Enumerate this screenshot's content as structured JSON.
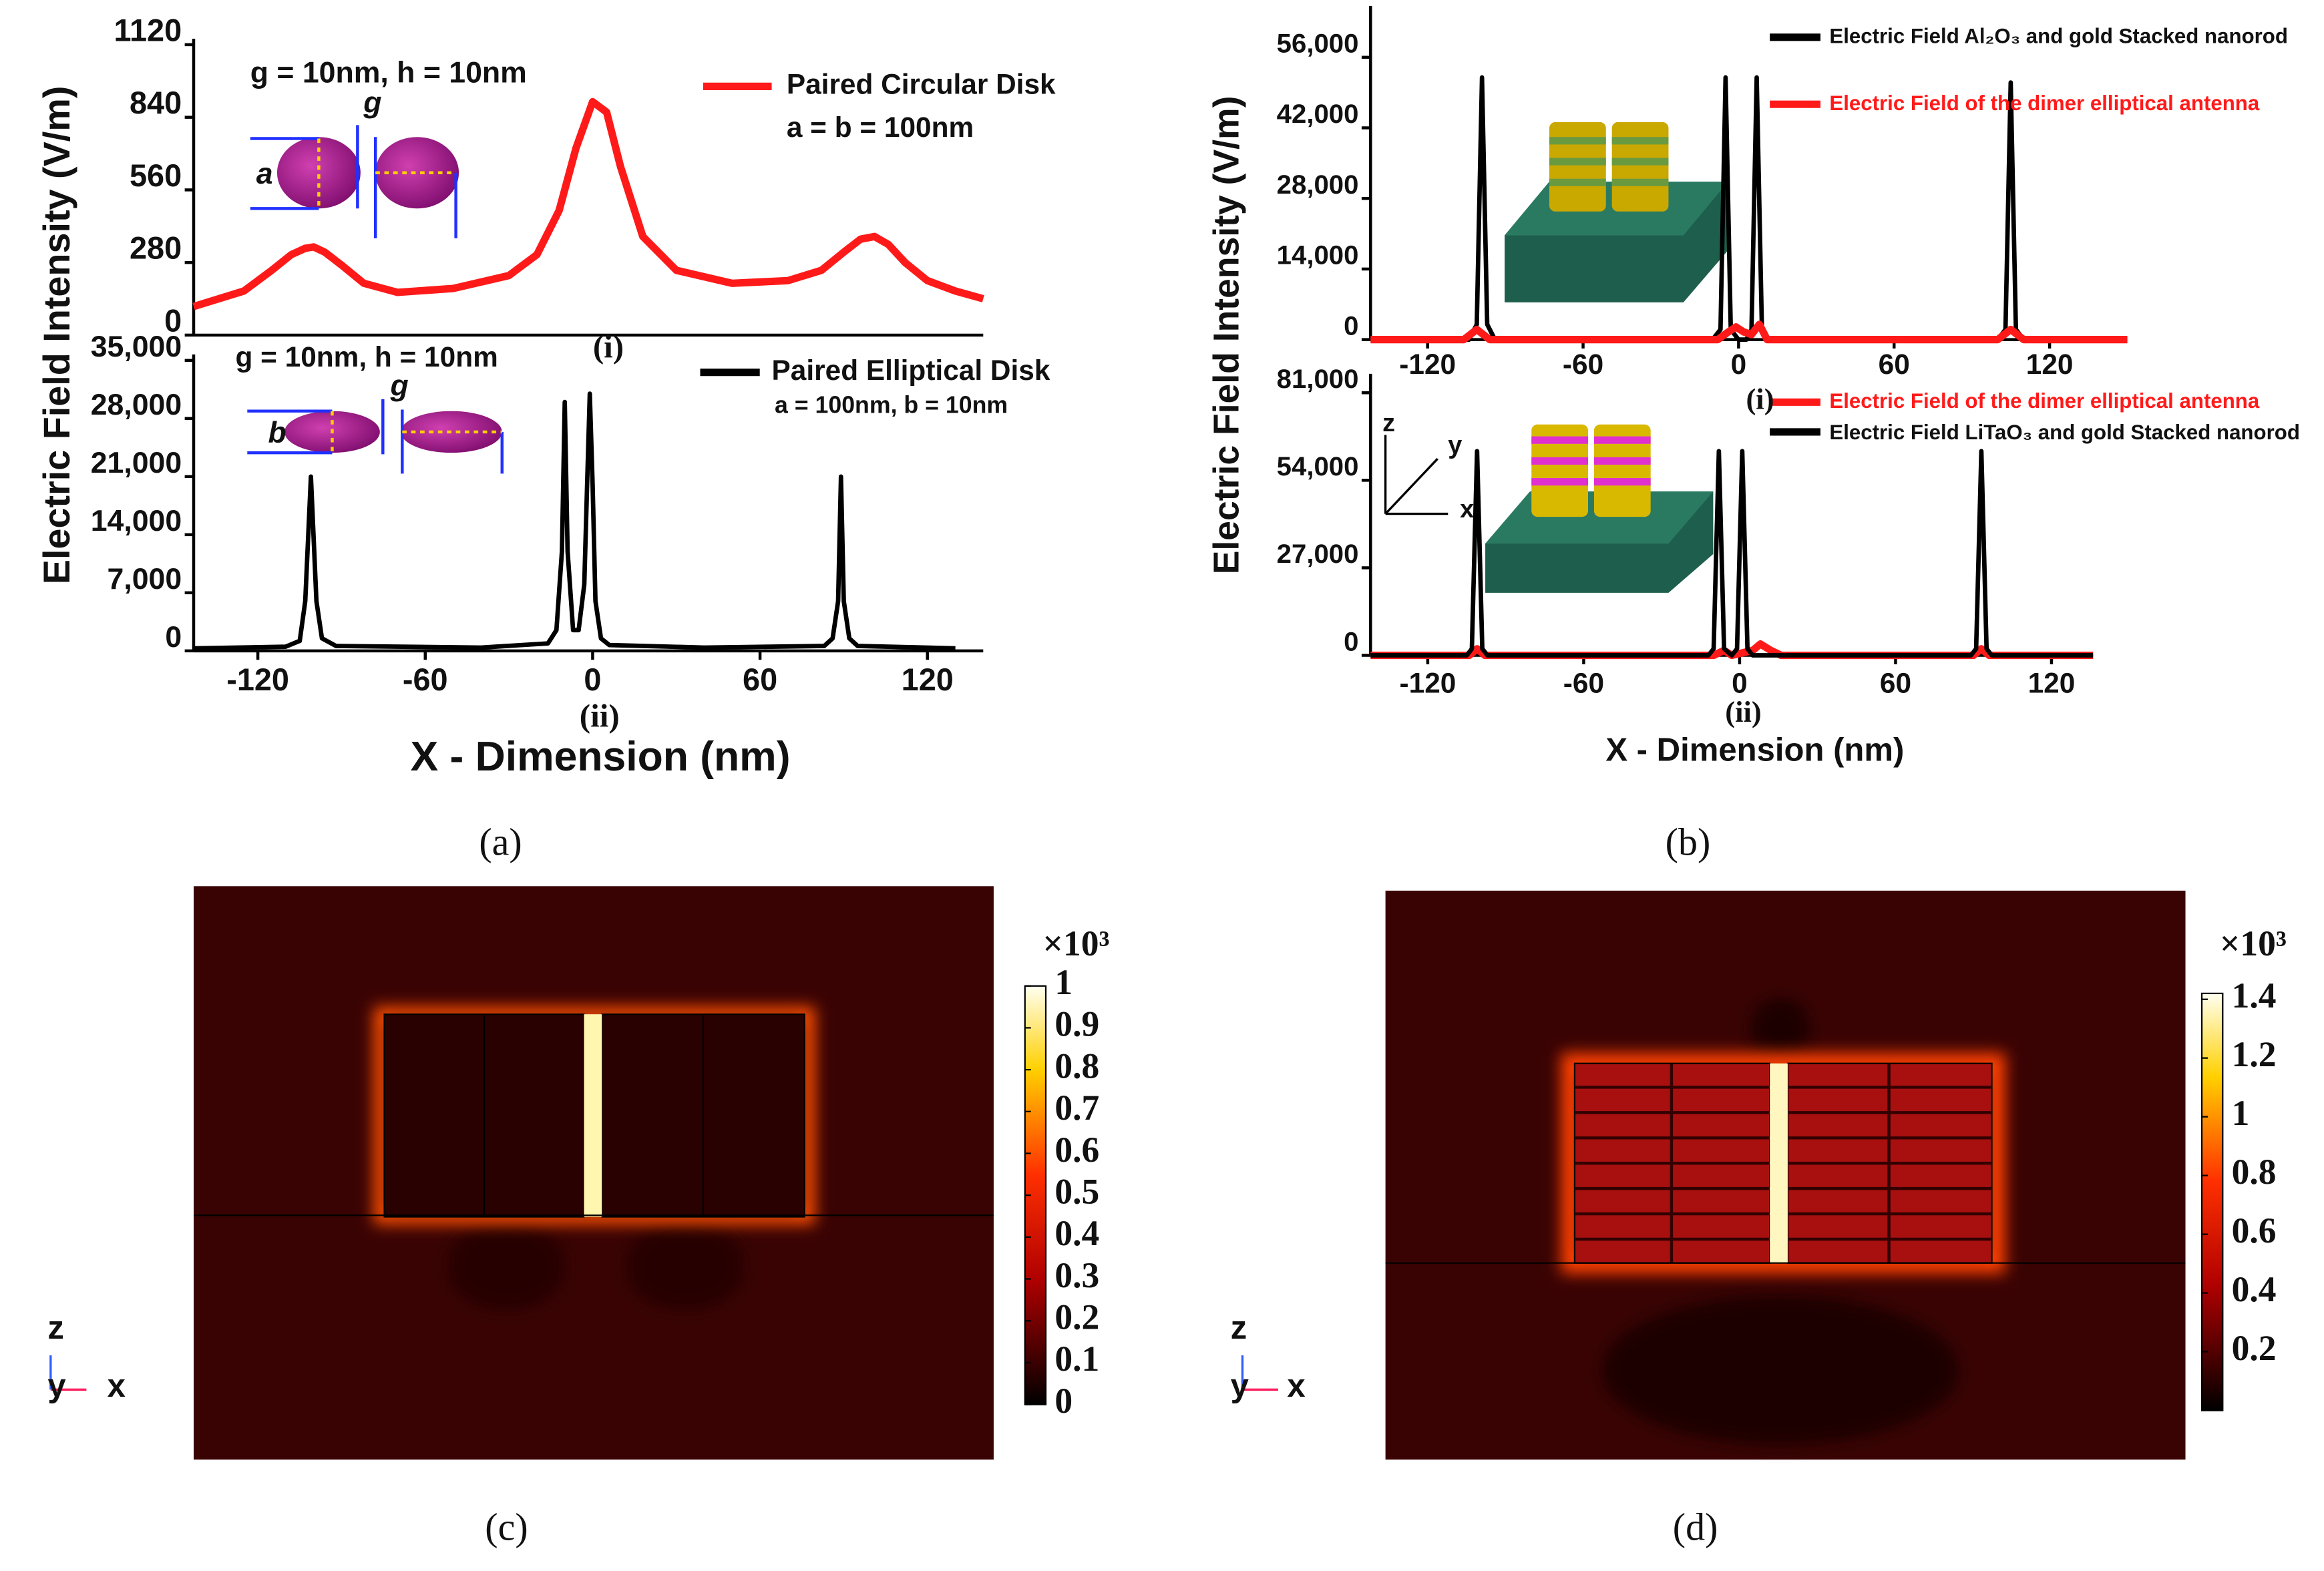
{
  "chart_data": [
    {
      "type": "line",
      "ylabel": "Electric Field Intensity (V/m)",
      "xlim": [
        -143,
        140
      ],
      "ylim": [
        0,
        1120
      ],
      "yticks": [
        0,
        280,
        560,
        840,
        1120
      ],
      "annotations": [
        "g = 10nm, h = 10nm",
        "a = b = 100nm",
        "g",
        "a"
      ],
      "series": [
        {
          "name": "Paired Circular Disk",
          "color": "#ff1a1a",
          "x": [
            -143,
            -125,
            -115,
            -108,
            -103,
            -100,
            -96,
            -90,
            -82,
            -70,
            -50,
            -30,
            -20,
            -12,
            -6,
            0,
            5,
            10,
            18,
            30,
            50,
            70,
            82,
            90,
            96,
            101,
            106,
            112,
            120,
            130,
            140
          ],
          "values": [
            110,
            170,
            250,
            310,
            335,
            340,
            320,
            270,
            200,
            165,
            180,
            230,
            310,
            480,
            720,
            900,
            860,
            650,
            380,
            250,
            200,
            210,
            250,
            320,
            370,
            380,
            350,
            280,
            210,
            170,
            140
          ]
        }
      ]
    },
    {
      "type": "line",
      "xlabel": "X - Dimension (nm)",
      "caption": "(a)",
      "xlim": [
        -143,
        140
      ],
      "ylim": [
        0,
        35000
      ],
      "yticks": [
        0,
        {
          "value": 7000,
          "label": "7,000"
        },
        {
          "value": 14000,
          "label": "14,000"
        },
        {
          "value": 21000,
          "label": "21,000"
        },
        {
          "value": 28000,
          "label": "28,000"
        },
        {
          "value": 35000,
          "label": "35,000"
        }
      ],
      "xticks": [
        -120,
        -60,
        0,
        60,
        120
      ],
      "annotations": [
        "g = 10nm, h = 10nm",
        "a = 100nm, b = 10nm",
        "g",
        "b",
        "(i)",
        "(ii)"
      ],
      "series": [
        {
          "name": "Paired Elliptical Disk",
          "color": "#000000",
          "x": [
            -143,
            -110,
            -105,
            -103,
            -101,
            -99,
            -97,
            -92,
            -40,
            -16,
            -13,
            -11,
            -10,
            -9,
            -7,
            -5,
            -3,
            -2,
            -1,
            0,
            1,
            3,
            6,
            40,
            83,
            86,
            88,
            89,
            90,
            92,
            95,
            130
          ],
          "values": [
            300,
            500,
            1200,
            6000,
            21000,
            6000,
            1500,
            600,
            400,
            900,
            2500,
            12000,
            30000,
            12000,
            2500,
            2500,
            8000,
            20000,
            31000,
            20000,
            6000,
            1500,
            700,
            400,
            600,
            1500,
            6000,
            21000,
            6000,
            1500,
            600,
            300
          ]
        }
      ]
    },
    {
      "type": "line",
      "ylabel": "Electric Field Intensity (V/m)",
      "xlim": [
        -142,
        150
      ],
      "ylim": [
        0,
        65000
      ],
      "yticks": [
        0,
        {
          "value": 14000,
          "label": "14,000"
        },
        {
          "value": 28000,
          "label": "28,000"
        },
        {
          "value": 42000,
          "label": "42,000"
        },
        {
          "value": 56000,
          "label": "56,000"
        }
      ],
      "xticks": [
        -120,
        -60,
        0,
        60,
        120
      ],
      "series": [
        {
          "name": "Electric Field Al₂O₃ and gold Stacked nanorod",
          "color": "#000000",
          "x": [
            -142,
            -104,
            -101,
            -99,
            -97,
            -94,
            -10,
            -7,
            -5,
            -3,
            0,
            3,
            5,
            7,
            9,
            11,
            14,
            100,
            103,
            105,
            107,
            110,
            150
          ],
          "values": [
            0,
            0,
            3000,
            52000,
            3000,
            0,
            0,
            2000,
            52000,
            2000,
            0,
            0,
            2000,
            52000,
            2000,
            0,
            0,
            0,
            2000,
            51000,
            2000,
            0,
            0
          ]
        },
        {
          "name": "Electric Field of the dimer elliptical antenna",
          "color": "#ff1a1a",
          "x": [
            -142,
            -106,
            -101,
            -96,
            -8,
            -4,
            -1,
            2,
            5,
            8,
            11,
            100,
            105,
            110,
            150
          ],
          "values": [
            0,
            0,
            2000,
            0,
            0,
            1500,
            2500,
            1500,
            1000,
            3000,
            0,
            0,
            2000,
            0,
            0
          ]
        }
      ]
    },
    {
      "type": "line",
      "xlabel": "X - Dimension (nm)",
      "caption": "(b)",
      "xlim": [
        -142,
        136
      ],
      "ylim": [
        0,
        85000
      ],
      "yticks": [
        0,
        {
          "value": 27000,
          "label": "27,000"
        },
        {
          "value": 54000,
          "label": "54,000"
        },
        {
          "value": 81000,
          "label": "81,000"
        }
      ],
      "xticks": [
        -120,
        -60,
        0,
        60,
        120
      ],
      "annotations": [
        "(i)",
        "(ii)",
        "z",
        "y",
        "x"
      ],
      "series": [
        {
          "name": "Electric Field of the dimer elliptical antenna",
          "color": "#ff1a1a",
          "x": [
            -142,
            -104,
            -101,
            -98,
            -10,
            -6,
            -3,
            5,
            8,
            12,
            16,
            90,
            93,
            96,
            136
          ],
          "values": [
            0,
            0,
            2000,
            0,
            0,
            1500,
            0,
            1500,
            3500,
            1500,
            0,
            0,
            2000,
            0,
            0
          ]
        },
        {
          "name": "Electric Field LiTaO₃ and gold Stacked nanorod",
          "color": "#000000",
          "x": [
            -142,
            -105,
            -103,
            -101,
            -99,
            -97,
            -12,
            -10,
            -8,
            -6,
            -3,
            -1,
            1,
            3,
            5,
            89,
            91,
            93,
            95,
            97,
            136
          ],
          "values": [
            0,
            0,
            2000,
            63000,
            2000,
            0,
            0,
            2000,
            63000,
            2000,
            0,
            2000,
            63000,
            2000,
            0,
            0,
            2000,
            63000,
            2000,
            0,
            0
          ]
        }
      ]
    },
    {
      "type": "heatmap",
      "caption": "(c)",
      "colorbar_label": "×10³",
      "clim": [
        0,
        1
      ],
      "cticks": [
        0,
        0.1,
        0.2,
        0.3,
        0.4,
        0.5,
        0.6,
        0.7,
        0.8,
        0.9,
        1
      ],
      "annotations": [
        "z",
        "y",
        "x"
      ]
    },
    {
      "type": "heatmap",
      "caption": "(d)",
      "colorbar_label": "×10³",
      "clim": [
        0,
        1.42
      ],
      "cticks": [
        0.2,
        0.4,
        0.6,
        0.8,
        1,
        1.2,
        1.4
      ],
      "annotations": [
        "z",
        "y",
        "x"
      ]
    }
  ]
}
